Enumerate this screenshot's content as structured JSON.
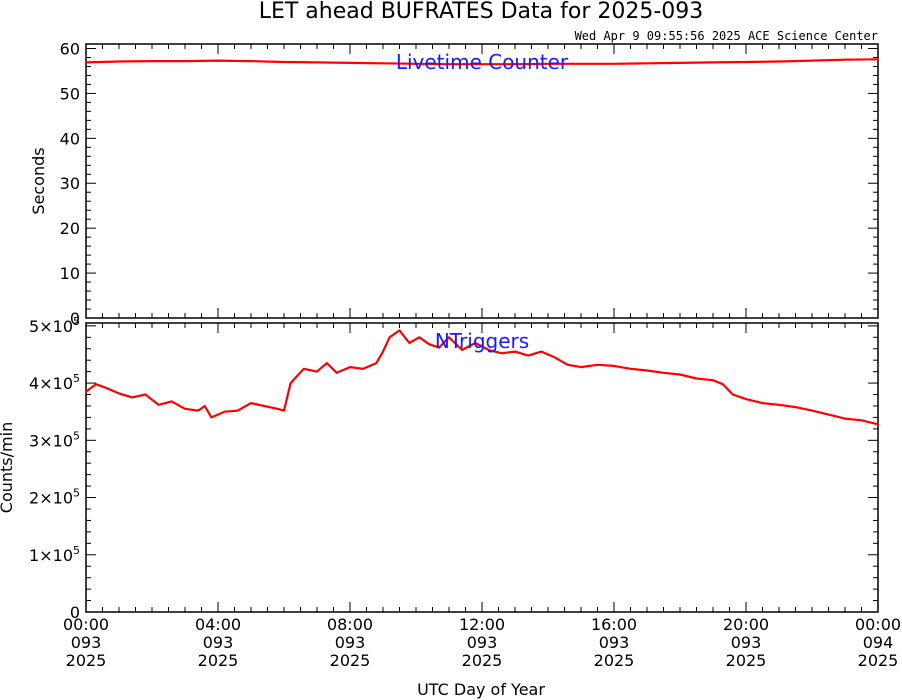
{
  "title": "LET ahead BUFRATES Data for 2025-093",
  "subtitle": "Wed Apr  9 09:55:56 2025 ACE Science Center",
  "xlabel": "UTC Day of Year",
  "colors": {
    "series": "#ff0000",
    "panel_label": "#1a1aff",
    "axis": "#000000"
  },
  "chart_data": [
    {
      "type": "line",
      "panel_label": "Livetime Counter",
      "ylabel": "Seconds",
      "ylim": [
        0,
        61
      ],
      "y_ticks": [
        0,
        10,
        20,
        30,
        40,
        50,
        60
      ],
      "y_tick_labels": [
        "0",
        "10",
        "20",
        "30",
        "40",
        "50",
        "60"
      ],
      "x_ticks": [
        0,
        4,
        8,
        12,
        16,
        20,
        24
      ],
      "x_tick_labels": [
        [
          "00:00",
          "093",
          "2025"
        ],
        [
          "04:00",
          "093",
          "2025"
        ],
        [
          "08:00",
          "093",
          "2025"
        ],
        [
          "12:00",
          "093",
          "2025"
        ],
        [
          "16:00",
          "093",
          "2025"
        ],
        [
          "20:00",
          "093",
          "2025"
        ],
        [
          "00:00",
          "094",
          "2025"
        ]
      ],
      "xlim": [
        0,
        24
      ],
      "series": [
        {
          "x": [
            0,
            1,
            2,
            3,
            4,
            5,
            6,
            7,
            8,
            9,
            10,
            11,
            12,
            13,
            14,
            15,
            16,
            17,
            18,
            19,
            20,
            21,
            22,
            23,
            24
          ],
          "values": [
            56.9,
            57.1,
            57.2,
            57.2,
            57.3,
            57.2,
            57.0,
            56.9,
            56.8,
            56.7,
            56.6,
            56.5,
            56.5,
            56.5,
            56.6,
            56.6,
            56.6,
            56.7,
            56.8,
            56.9,
            57.0,
            57.1,
            57.3,
            57.5,
            57.6
          ]
        }
      ]
    },
    {
      "type": "line",
      "panel_label": "NTriggers",
      "ylabel": "Counts/min",
      "ylim": [
        0,
        505000
      ],
      "y_ticks": [
        0,
        100000,
        200000,
        300000,
        400000,
        500000
      ],
      "y_tick_labels": [
        {
          "base": "0",
          "exp": ""
        },
        {
          "base": "1×10",
          "exp": "5"
        },
        {
          "base": "2×10",
          "exp": "5"
        },
        {
          "base": "3×10",
          "exp": "5"
        },
        {
          "base": "4×10",
          "exp": "5"
        },
        {
          "base": "5×10",
          "exp": "5"
        }
      ],
      "x_ticks": [
        0,
        4,
        8,
        12,
        16,
        20,
        24
      ],
      "x_tick_labels": [
        [
          "00:00",
          "093",
          "2025"
        ],
        [
          "04:00",
          "093",
          "2025"
        ],
        [
          "08:00",
          "093",
          "2025"
        ],
        [
          "12:00",
          "093",
          "2025"
        ],
        [
          "16:00",
          "093",
          "2025"
        ],
        [
          "20:00",
          "093",
          "2025"
        ],
        [
          "00:00",
          "094",
          "2025"
        ]
      ],
      "xlim": [
        0,
        24
      ],
      "series": [
        {
          "x": [
            0,
            0.3,
            0.6,
            1.0,
            1.4,
            1.8,
            2.2,
            2.6,
            3.0,
            3.4,
            3.6,
            3.8,
            4.2,
            4.6,
            5.0,
            5.4,
            5.8,
            6.0,
            6.2,
            6.6,
            7.0,
            7.3,
            7.6,
            8.0,
            8.4,
            8.8,
            9.0,
            9.2,
            9.5,
            9.8,
            10.1,
            10.4,
            10.7,
            11.0,
            11.4,
            11.8,
            12.2,
            12.6,
            13.0,
            13.4,
            13.8,
            14.2,
            14.6,
            15.0,
            15.5,
            16.0,
            16.5,
            17.0,
            17.5,
            18.0,
            18.5,
            19.0,
            19.3,
            19.6,
            20.0,
            20.5,
            21.0,
            21.5,
            22.0,
            22.5,
            23.0,
            23.5,
            24.0
          ],
          "values": [
            385000,
            398000,
            392000,
            382000,
            375000,
            380000,
            362000,
            368000,
            355000,
            352000,
            360000,
            340000,
            350000,
            352000,
            365000,
            360000,
            355000,
            352000,
            400000,
            425000,
            420000,
            435000,
            418000,
            428000,
            425000,
            435000,
            455000,
            480000,
            492000,
            470000,
            480000,
            468000,
            462000,
            480000,
            458000,
            470000,
            458000,
            452000,
            455000,
            448000,
            455000,
            445000,
            432000,
            428000,
            432000,
            430000,
            425000,
            422000,
            418000,
            415000,
            408000,
            405000,
            398000,
            380000,
            372000,
            365000,
            362000,
            358000,
            352000,
            345000,
            338000,
            335000,
            328000
          ]
        }
      ]
    }
  ]
}
